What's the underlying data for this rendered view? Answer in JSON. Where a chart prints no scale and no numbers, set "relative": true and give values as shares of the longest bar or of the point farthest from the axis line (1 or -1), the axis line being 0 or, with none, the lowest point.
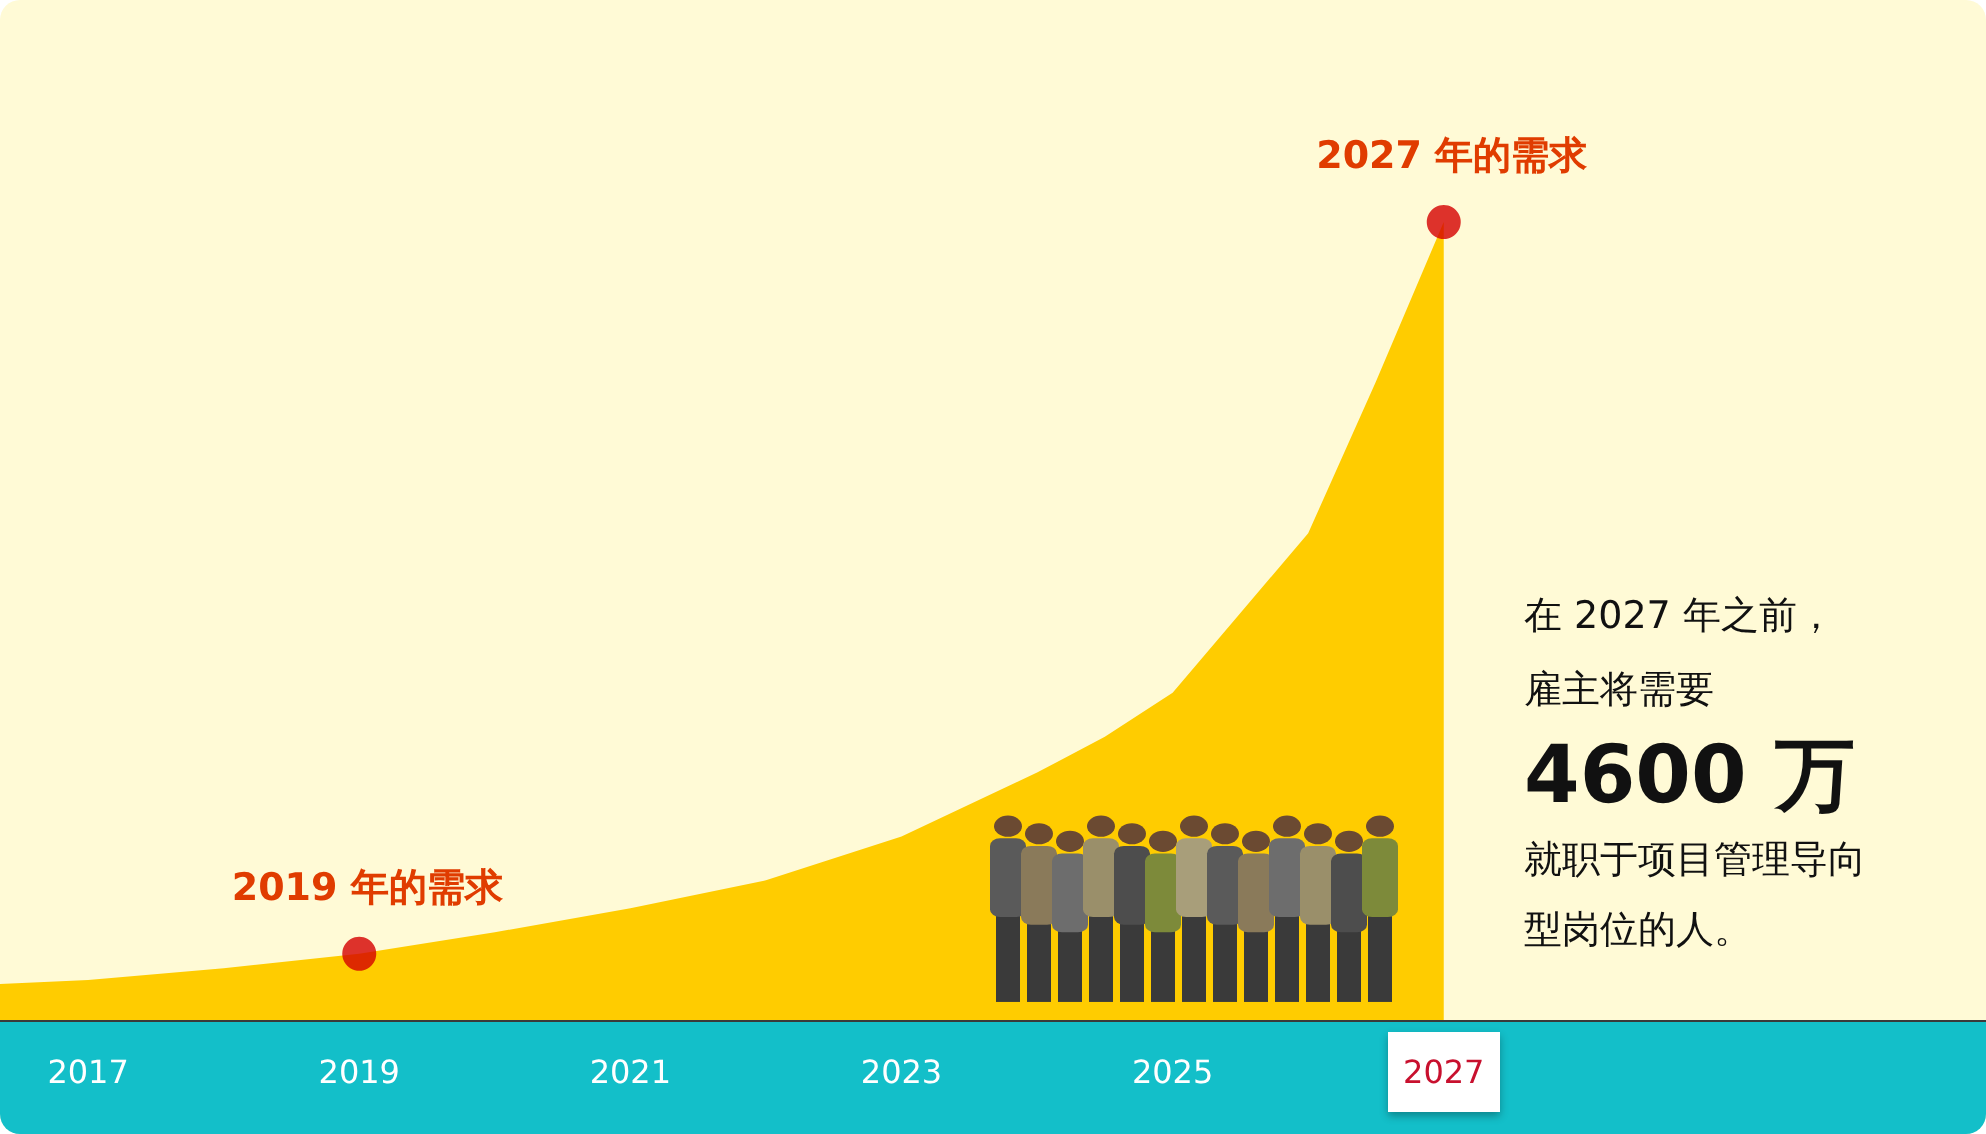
{
  "chart_data": {
    "type": "area",
    "relative": true,
    "xlim": [
      2016.35,
      2031
    ],
    "xticks": [
      2017,
      2019,
      2021,
      2023,
      2025,
      2027
    ],
    "series": [
      {
        "type": "area",
        "color": "#ffcc00",
        "x": [
          2016.35,
          2017,
          2018,
          2019,
          2020,
          2021,
          2022,
          2023,
          2024,
          2024.5,
          2025,
          2025.5,
          2026,
          2026.5,
          2027
        ],
        "values": [
          0.045,
          0.05,
          0.065,
          0.083,
          0.11,
          0.14,
          0.175,
          0.23,
          0.31,
          0.355,
          0.41,
          0.51,
          0.61,
          0.8,
          1
        ]
      },
      {
        "type": "scatter",
        "color": "#d40000",
        "x": [
          2019,
          2027
        ],
        "values": [
          0.083,
          1
        ]
      }
    ],
    "annotations": [
      {
        "text": "2019 年的需求",
        "x": 2019,
        "y": 0.083
      },
      {
        "text": "2027 年的需求",
        "x": 2027,
        "y": 1
      },
      "在 2027 年之前，",
      "雇主将需要",
      "4600 万",
      "就职于项目管理导向",
      "型岗位的人。"
    ]
  }
}
